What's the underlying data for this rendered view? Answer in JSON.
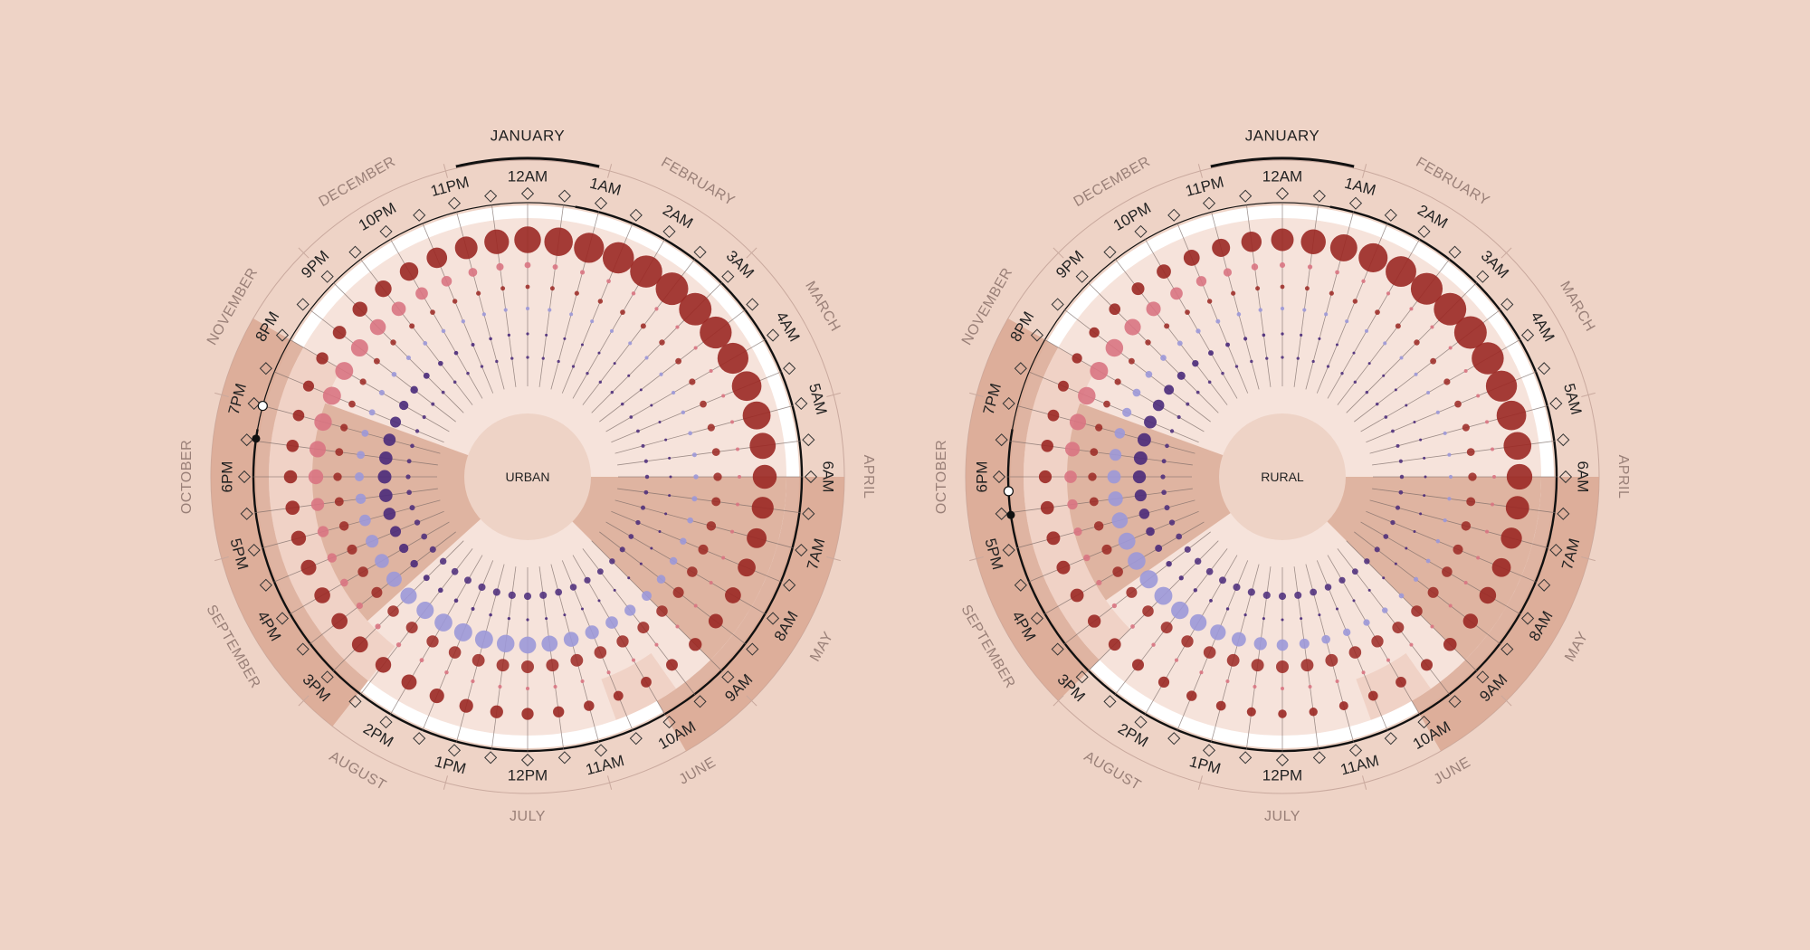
{
  "colors": {
    "background": "#eed3c6",
    "day_band": "#f6e3db",
    "outer_band": "#ffffff",
    "sector_shade": "#d9a792",
    "sector_light": "#f0d2c6",
    "dark_red": "#9b2823",
    "pink": "#d97482",
    "lavender": "#9c98d8",
    "dark_purple": "#4a2a7a",
    "spoke": "#7a6a66",
    "ring": "#111111"
  },
  "icons": {
    "diamond": "diamond-icon",
    "ring_marker": "ring-marker-icon"
  },
  "hours": [
    "12AM",
    "1AM",
    "2AM",
    "3AM",
    "4AM",
    "5AM",
    "6AM",
    "7AM",
    "8AM",
    "9AM",
    "10AM",
    "11AM",
    "12PM",
    "1PM",
    "2PM",
    "3PM",
    "4PM",
    "5PM",
    "6PM",
    "7PM",
    "8PM",
    "9PM",
    "10PM",
    "11PM"
  ],
  "months": [
    "JANUARY",
    "FEBRUARY",
    "MARCH",
    "APRIL",
    "MAY",
    "JUNE",
    "JULY",
    "AUGUST",
    "SEPTEMBER",
    "OCTOBER",
    "NOVEMBER",
    "DECEMBER"
  ],
  "active_month": "JANUARY",
  "chart_data": [
    {
      "type": "radial-dot",
      "title": "URBAN",
      "spokes_per_hour": 2,
      "rings": 5,
      "shaded_hours": [
        "6AM",
        "7AM",
        "8AM",
        "9AM",
        "4PM",
        "5PM",
        "6PM",
        "7PM",
        "8PM"
      ],
      "night_hours": [
        "12AM",
        "1AM",
        "2AM",
        "3AM",
        "4AM",
        "5AM",
        "6AM",
        "7AM",
        "8AM",
        "9PM",
        "10PM",
        "11PM"
      ]
    },
    {
      "type": "radial-dot",
      "title": "RURAL",
      "spokes_per_hour": 2,
      "rings": 5,
      "shaded_hours": [
        "6AM",
        "7AM",
        "8AM",
        "9AM",
        "4PM",
        "5PM",
        "6PM",
        "7PM",
        "8PM"
      ],
      "night_hours": [
        "12AM",
        "1AM",
        "2AM",
        "3AM",
        "4AM",
        "5AM",
        "6AM",
        "7AM",
        "8AM",
        "9PM",
        "10PM",
        "11PM"
      ]
    }
  ]
}
